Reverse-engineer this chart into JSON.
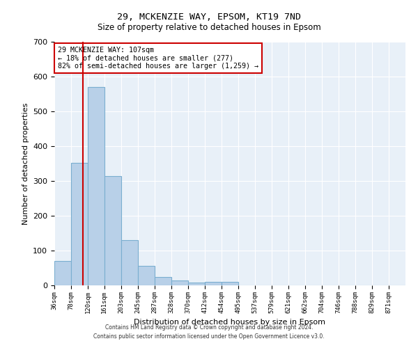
{
  "title": "29, MCKENZIE WAY, EPSOM, KT19 7ND",
  "subtitle": "Size of property relative to detached houses in Epsom",
  "xlabel": "Distribution of detached houses by size in Epsom",
  "ylabel": "Number of detached properties",
  "bin_labels": [
    "36sqm",
    "78sqm",
    "120sqm",
    "161sqm",
    "203sqm",
    "245sqm",
    "287sqm",
    "328sqm",
    "370sqm",
    "412sqm",
    "454sqm",
    "495sqm",
    "537sqm",
    "579sqm",
    "621sqm",
    "662sqm",
    "704sqm",
    "746sqm",
    "788sqm",
    "829sqm",
    "871sqm"
  ],
  "bar_values": [
    70,
    352,
    571,
    315,
    130,
    57,
    25,
    15,
    8,
    10,
    10,
    0,
    0,
    0,
    0,
    0,
    0,
    0,
    0,
    0,
    0
  ],
  "bar_color": "#b8d0e8",
  "bar_edge_color": "#7aaed0",
  "background_color": "#e8f0f8",
  "grid_color": "#ffffff",
  "property_label": "29 MCKENZIE WAY: 107sqm",
  "annotation_line1": "← 18% of detached houses are smaller (277)",
  "annotation_line2": "82% of semi-detached houses are larger (1,259) →",
  "vline_color": "#cc0000",
  "annotation_box_color": "#cc0000",
  "ylim": [
    0,
    700
  ],
  "yticks": [
    0,
    100,
    200,
    300,
    400,
    500,
    600,
    700
  ],
  "bin_edges": [
    36,
    78,
    120,
    161,
    203,
    245,
    287,
    328,
    370,
    412,
    454,
    495,
    537,
    579,
    621,
    662,
    704,
    746,
    788,
    829,
    871,
    913
  ],
  "vline_x": 107,
  "footer_line1": "Contains HM Land Registry data © Crown copyright and database right 2024.",
  "footer_line2": "Contains public sector information licensed under the Open Government Licence v3.0."
}
